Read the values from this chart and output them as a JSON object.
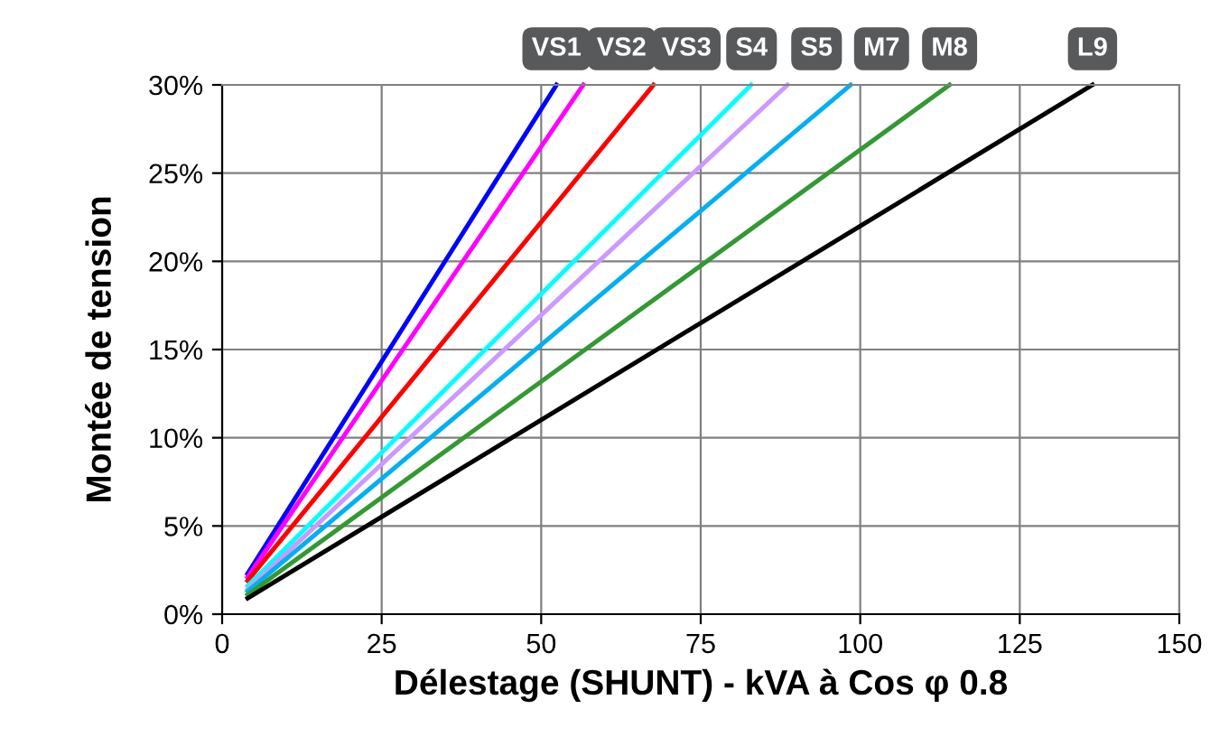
{
  "chart_data": {
    "type": "line",
    "xlabel": "Délestage (SHUNT) - kVA à Cos φ 0.8",
    "ylabel": "Montée de tension",
    "xlim": [
      0,
      150
    ],
    "xticks": [
      0,
      25,
      50,
      75,
      100,
      125,
      150
    ],
    "ylim": [
      0,
      30
    ],
    "yticks": [
      {
        "value": 0,
        "label": "0%"
      },
      {
        "value": 5,
        "label": "5%"
      },
      {
        "value": 10,
        "label": "10%"
      },
      {
        "value": 15,
        "label": "15%"
      },
      {
        "value": 20,
        "label": "20%"
      },
      {
        "value": 25,
        "label": "25%"
      },
      {
        "value": 30,
        "label": "30%"
      }
    ],
    "grid": true,
    "marker": "none",
    "line_style": "solid",
    "series": [
      {
        "name": "VS1",
        "color": "#0000ff",
        "x": [
          4,
          52.4
        ],
        "values": [
          2.3,
          30
        ]
      },
      {
        "name": "VS2",
        "color": "#ff00ff",
        "x": [
          4,
          56.6
        ],
        "values": [
          2.1,
          30
        ]
      },
      {
        "name": "VS3",
        "color": "#ff0000",
        "x": [
          4,
          67.6
        ],
        "values": [
          1.9,
          30
        ]
      },
      {
        "name": "S4",
        "color": "#00ffff",
        "x": [
          4,
          82.9
        ],
        "values": [
          1.6,
          30
        ]
      },
      {
        "name": "S5",
        "color": "#cc99ff",
        "x": [
          4,
          88.6
        ],
        "values": [
          1.4,
          30
        ]
      },
      {
        "name": "M7",
        "color": "#00b0f0",
        "x": [
          4,
          98.5
        ],
        "values": [
          1.3,
          30
        ]
      },
      {
        "name": "M8",
        "color": "#339933",
        "x": [
          4,
          114
        ],
        "values": [
          1.1,
          30
        ]
      },
      {
        "name": "L9",
        "color": "#000000",
        "x": [
          4,
          136.4
        ],
        "values": [
          0.9,
          30
        ]
      }
    ]
  }
}
